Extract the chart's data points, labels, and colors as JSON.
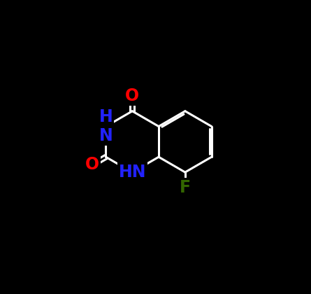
{
  "background_color": "#000000",
  "line_color": "#ffffff",
  "atom_colors": {
    "O": "#ff0000",
    "N": "#2222ff",
    "F": "#336600",
    "C": "#ffffff"
  },
  "figsize": [
    4.45,
    4.2
  ],
  "dpi": 100,
  "lw": 2.2,
  "fontsize": 17
}
